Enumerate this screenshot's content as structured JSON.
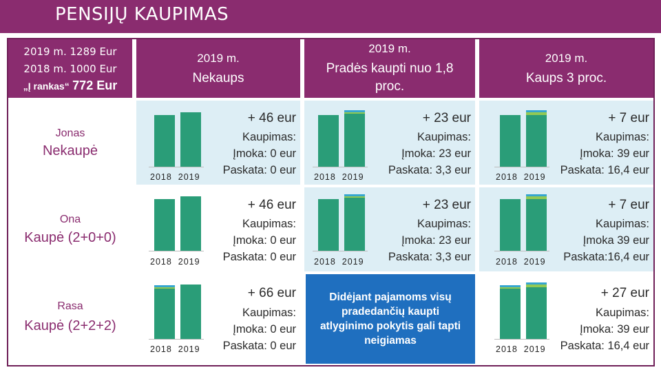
{
  "title": "PENSIJŲ KAUPIMAS",
  "header": {
    "left_line1": "2019 m.  1289 Eur",
    "left_line2": "2018 m. 1000 Eur",
    "left_line3a": "„Į rankas“",
    "left_line3b": "772 Eur",
    "c1_year": "2019 m.",
    "c1_name": "Nekaups",
    "c2_year": "2019 m.",
    "c2_name": "Pradės kaupti nuo 1,8 proc.",
    "c3_year": "2019 m.",
    "c3_name": "Kaups 3 proc."
  },
  "rows": [
    {
      "person": "Jonas",
      "status": "Nekaupė",
      "c1": {
        "gain": "+ 46 eur",
        "k": "Kaupimas:",
        "imoka": "Įmoka: 0 eur",
        "paskata": "Paskata: 0 eur"
      },
      "c2": {
        "gain": "+ 23 eur",
        "k": "Kaupimas:",
        "imoka": "Įmoka: 23 eur",
        "paskata": "Paskata: 3,3 eur"
      },
      "c3": {
        "gain": "+ 7 eur",
        "k": "Kaupimas:",
        "imoka": "Įmoka: 39 eur",
        "paskata": "Paskata: 16,4 eur"
      }
    },
    {
      "person": "Ona",
      "status": "Kaupė (2+0+0)",
      "c1": {
        "gain": "+ 46 eur",
        "k": "Kaupimas:",
        "imoka": "Įmoka: 0 eur",
        "paskata": "Paskata: 0 eur"
      },
      "c2": {
        "gain": "+ 23 eur",
        "k": "Kaupimas:",
        "imoka": "Įmoka: 23 eur",
        "paskata": "Paskata: 3,3 eur"
      },
      "c3": {
        "gain": "+ 7 eur",
        "k": "Kaupimas:",
        "imoka": "Įmoka 39 eur",
        "paskata": "Paskata:16,4 eur"
      }
    },
    {
      "person": "Rasa",
      "status": "Kaupė (2+2+2)",
      "c1": {
        "gain": "+ 66 eur",
        "k": "Kaupimas:",
        "imoka": "Įmoka: 0 eur",
        "paskata": "Paskata: 0 eur"
      },
      "c2_note": "Didėjant pajamoms visų pradedančių kaupti atlyginimo pokytis gali tapti neigiamas",
      "c3": {
        "gain": "+ 27 eur",
        "k": "Kaupimas:",
        "imoka": "Įmoka: 39 eur",
        "paskata": "Paskata: 16,4 eur"
      }
    }
  ],
  "chart_labels": {
    "y2018": "2018",
    "y2019": "2019"
  },
  "chart_data": [
    {
      "type": "bar",
      "title": "Jonas – Nekaups",
      "categories": [
        "2018",
        "2019"
      ],
      "series": [
        {
          "name": "Į rankas",
          "values": [
            772,
            818
          ]
        },
        {
          "name": "Įmoka",
          "values": [
            0,
            0
          ]
        },
        {
          "name": "Paskata",
          "values": [
            0,
            0
          ]
        }
      ]
    },
    {
      "type": "bar",
      "title": "Jonas – 1,8 proc.",
      "categories": [
        "2018",
        "2019"
      ],
      "series": [
        {
          "name": "Į rankas",
          "values": [
            772,
            795
          ]
        },
        {
          "name": "Įmoka",
          "values": [
            0,
            23
          ]
        },
        {
          "name": "Paskata",
          "values": [
            0,
            3.3
          ]
        }
      ]
    },
    {
      "type": "bar",
      "title": "Jonas – 3 proc.",
      "categories": [
        "2018",
        "2019"
      ],
      "series": [
        {
          "name": "Į rankas",
          "values": [
            772,
            779
          ]
        },
        {
          "name": "Įmoka",
          "values": [
            0,
            39
          ]
        },
        {
          "name": "Paskata",
          "values": [
            0,
            16.4
          ]
        }
      ]
    },
    {
      "type": "bar",
      "title": "Ona – Nekaups",
      "categories": [
        "2018",
        "2019"
      ],
      "series": [
        {
          "name": "Į rankas",
          "values": [
            772,
            818
          ]
        },
        {
          "name": "Įmoka",
          "values": [
            0,
            0
          ]
        },
        {
          "name": "Paskata",
          "values": [
            0,
            0
          ]
        }
      ]
    },
    {
      "type": "bar",
      "title": "Ona – 1,8 proc.",
      "categories": [
        "2018",
        "2019"
      ],
      "series": [
        {
          "name": "Į rankas",
          "values": [
            772,
            795
          ]
        },
        {
          "name": "Įmoka",
          "values": [
            0,
            23
          ]
        },
        {
          "name": "Paskata",
          "values": [
            0,
            3.3
          ]
        }
      ]
    },
    {
      "type": "bar",
      "title": "Ona – 3 proc.",
      "categories": [
        "2018",
        "2019"
      ],
      "series": [
        {
          "name": "Į rankas",
          "values": [
            772,
            779
          ]
        },
        {
          "name": "Įmoka",
          "values": [
            0,
            39
          ]
        },
        {
          "name": "Paskata",
          "values": [
            0,
            16.4
          ]
        }
      ]
    },
    {
      "type": "bar",
      "title": "Rasa – Nekaups",
      "categories": [
        "2018",
        "2019"
      ],
      "series": [
        {
          "name": "Į rankas",
          "values": [
            752,
            818
          ]
        },
        {
          "name": "Įmoka",
          "values": [
            20,
            0
          ]
        },
        {
          "name": "Paskata",
          "values": [
            10,
            0
          ]
        }
      ]
    },
    {
      "type": "bar",
      "title": "Rasa – 3 proc.",
      "categories": [
        "2018",
        "2019"
      ],
      "series": [
        {
          "name": "Į rankas",
          "values": [
            752,
            779
          ]
        },
        {
          "name": "Įmoka",
          "values": [
            20,
            39
          ]
        },
        {
          "name": "Paskata",
          "values": [
            10,
            16.4
          ]
        }
      ]
    }
  ],
  "colors": {
    "header": "#8a2c6f",
    "green": "#2a9d78",
    "lime": "#93c954",
    "cyan": "#35a6cf",
    "note": "#1f6fbf"
  }
}
